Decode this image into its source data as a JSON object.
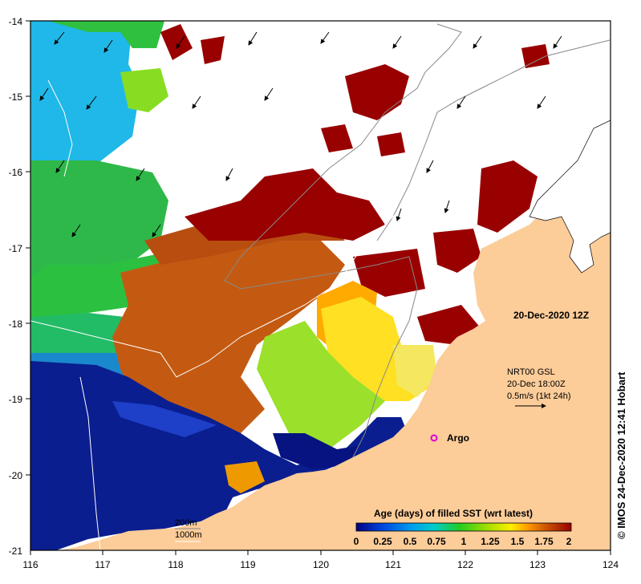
{
  "map": {
    "x_axis": {
      "ticks": [
        "116",
        "117",
        "118",
        "119",
        "120",
        "121",
        "122",
        "123",
        "124"
      ]
    },
    "y_axis": {
      "ticks": [
        "-14",
        "-15",
        "-16",
        "-17",
        "-18",
        "-19",
        "-20",
        "-21"
      ]
    },
    "timestamp": "20-Dec-2020 12Z",
    "current_legend": {
      "line1": "NRT00 GSL",
      "line2": "20-Dec 18:00Z",
      "line3": "0.5m/s (1kt 24h)"
    },
    "argo_label": "Argo",
    "isobaths": [
      "200m",
      "1000m"
    ],
    "colorbar": {
      "title": "Age (days) of filled SST (wrt latest)",
      "ticks": [
        "0",
        "0.25",
        "0.5",
        "0.75",
        "1",
        "1.25",
        "1.5",
        "1.75",
        "2"
      ]
    },
    "credit": "© IMOS 24-Dec-2020 12:41 Hobart",
    "colors": {
      "land": "#fccc99",
      "cloud": "#ffffff",
      "age_0": "#000080",
      "age_0_5": "#00aaff",
      "age_1": "#22cc22",
      "age_1_25": "#bbee22",
      "age_1_5": "#ffdd00",
      "age_1_75": "#cc5500",
      "age_2": "#990000"
    }
  },
  "chart_data": {
    "type": "heatmap",
    "title": "",
    "x_range": [
      116,
      124
    ],
    "y_range": [
      -21,
      -14
    ],
    "colorbar_range": [
      0,
      2
    ],
    "colorbar_label": "Age (days) of filled SST (wrt latest)",
    "argo_float": {
      "lon": 121.6,
      "lat": -19.5
    }
  }
}
